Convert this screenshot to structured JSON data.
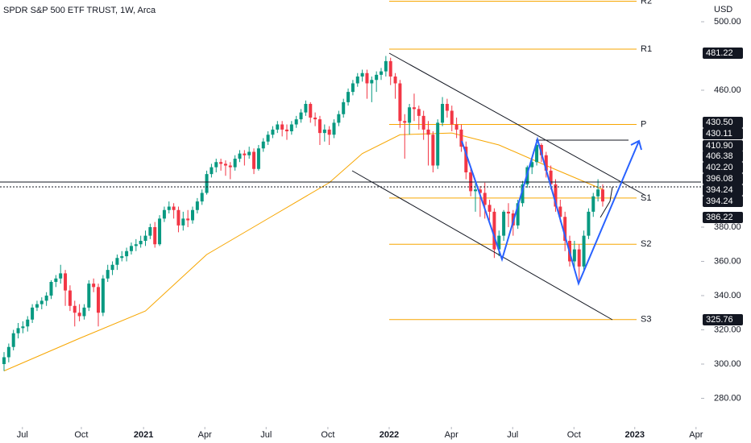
{
  "chart_data": {
    "type": "candlestick",
    "title": "SPDR S&P 500 ETF TRUST, 1W, Arca",
    "currency": "USD",
    "xlim": [
      -0.855,
      147.86
    ],
    "xticks": [
      {
        "value": 3.9,
        "label": "Jul"
      },
      {
        "value": 16.4,
        "label": "Oct"
      },
      {
        "value": 29.6,
        "label": "2021"
      },
      {
        "value": 42.6,
        "label": "Apr"
      },
      {
        "value": 55.6,
        "label": "Jul"
      },
      {
        "value": 68.7,
        "label": "Oct"
      },
      {
        "value": 81.7,
        "label": "2022"
      },
      {
        "value": 94.9,
        "label": "Apr"
      },
      {
        "value": 107.9,
        "label": "Jul"
      },
      {
        "value": 120.9,
        "label": "Oct"
      },
      {
        "value": 133.8,
        "label": "2023"
      },
      {
        "value": 146.8,
        "label": "Apr"
      }
    ],
    "ylim": [
      263.3,
      512.7
    ],
    "yticks": [
      {
        "value": 280,
        "label": "280.00"
      },
      {
        "value": 300,
        "label": "300.00"
      },
      {
        "value": 320,
        "label": "320.00"
      },
      {
        "value": 340,
        "label": "340.00"
      },
      {
        "value": 360,
        "label": "360.00"
      },
      {
        "value": 380,
        "label": "380.00"
      },
      {
        "value": 460,
        "label": "460.00"
      },
      {
        "value": 500,
        "label": "500.00"
      }
    ],
    "up_color": "#089981",
    "down_color": "#f23645",
    "ohlc": [
      [
        300,
        307,
        296,
        304
      ],
      [
        304,
        312,
        301,
        310
      ],
      [
        310,
        320,
        308,
        318
      ],
      [
        318,
        324,
        315,
        321
      ],
      [
        321,
        325,
        318,
        322
      ],
      [
        322,
        328,
        319,
        326
      ],
      [
        326,
        335,
        324,
        333
      ],
      [
        333,
        337,
        331,
        335
      ],
      [
        335,
        339,
        332,
        337
      ],
      [
        337,
        342,
        334,
        340
      ],
      [
        340,
        349,
        338,
        348
      ],
      [
        348,
        352,
        345,
        350
      ],
      [
        350,
        358,
        347,
        353
      ],
      [
        353,
        355,
        334,
        343
      ],
      [
        343,
        346,
        331,
        334
      ],
      [
        334,
        337,
        322,
        330
      ],
      [
        330,
        335,
        325,
        328
      ],
      [
        328,
        335,
        326,
        333
      ],
      [
        333,
        349,
        331,
        347
      ],
      [
        347,
        350,
        342,
        345
      ],
      [
        345,
        347,
        322,
        330
      ],
      [
        330,
        352,
        328,
        350
      ],
      [
        350,
        358,
        348,
        355
      ],
      [
        355,
        360,
        352,
        358
      ],
      [
        358,
        364,
        355,
        362
      ],
      [
        362,
        366,
        360,
        363
      ],
      [
        363,
        368,
        360,
        366
      ],
      [
        366,
        371,
        364,
        369
      ],
      [
        369,
        373,
        366,
        370
      ],
      [
        370,
        375,
        368,
        372
      ],
      [
        372,
        378,
        369,
        375
      ],
      [
        375,
        382,
        373,
        380
      ],
      [
        380,
        383,
        368,
        370
      ],
      [
        370,
        387,
        369,
        385
      ],
      [
        385,
        392,
        383,
        390
      ],
      [
        390,
        395,
        388,
        392
      ],
      [
        392,
        394,
        385,
        390
      ],
      [
        390,
        392,
        377,
        381
      ],
      [
        381,
        389,
        378,
        385
      ],
      [
        385,
        390,
        380,
        384
      ],
      [
        384,
        392,
        382,
        390
      ],
      [
        390,
        397,
        388,
        395
      ],
      [
        395,
        402,
        393,
        400
      ],
      [
        400,
        413,
        399,
        411
      ],
      [
        411,
        417,
        409,
        415
      ],
      [
        415,
        420,
        412,
        418
      ],
      [
        418,
        420,
        413,
        417
      ],
      [
        417,
        419,
        410,
        416
      ],
      [
        416,
        418,
        408,
        415
      ],
      [
        415,
        422,
        413,
        420
      ],
      [
        420,
        425,
        418,
        423
      ],
      [
        423,
        425,
        416,
        422
      ],
      [
        422,
        427,
        420,
        424
      ],
      [
        424,
        426,
        411,
        414
      ],
      [
        414,
        428,
        413,
        426
      ],
      [
        426,
        432,
        424,
        430
      ],
      [
        430,
        436,
        428,
        434
      ],
      [
        434,
        439,
        432,
        437
      ],
      [
        437,
        442,
        435,
        440
      ],
      [
        440,
        442,
        433,
        437
      ],
      [
        437,
        440,
        431,
        436
      ],
      [
        436,
        442,
        434,
        440
      ],
      [
        440,
        445,
        438,
        443
      ],
      [
        443,
        449,
        441,
        447
      ],
      [
        447,
        454,
        445,
        452
      ],
      [
        452,
        453,
        441,
        444
      ],
      [
        444,
        447,
        439,
        443
      ],
      [
        443,
        445,
        428,
        435
      ],
      [
        435,
        440,
        430,
        437
      ],
      [
        437,
        439,
        428,
        434
      ],
      [
        434,
        443,
        432,
        441
      ],
      [
        441,
        448,
        439,
        446
      ],
      [
        446,
        455,
        444,
        453
      ],
      [
        453,
        461,
        451,
        459
      ],
      [
        459,
        466,
        457,
        464
      ],
      [
        464,
        470,
        462,
        468
      ],
      [
        468,
        472,
        465,
        470
      ],
      [
        470,
        472,
        455,
        464
      ],
      [
        464,
        468,
        453,
        466
      ],
      [
        466,
        471,
        459,
        469
      ],
      [
        469,
        473,
        466,
        471
      ],
      [
        471,
        480,
        468,
        477
      ],
      [
        477,
        479,
        463,
        468
      ],
      [
        468,
        470,
        455,
        464
      ],
      [
        464,
        466,
        438,
        442
      ],
      [
        442,
        446,
        420,
        441
      ],
      [
        441,
        452,
        434,
        450
      ],
      [
        450,
        458,
        442,
        449
      ],
      [
        449,
        451,
        437,
        445
      ],
      [
        445,
        448,
        431,
        437
      ],
      [
        437,
        442,
        416,
        434
      ],
      [
        434,
        436,
        412,
        416
      ],
      [
        416,
        443,
        414,
        441
      ],
      [
        441,
        456,
        439,
        452
      ],
      [
        452,
        455,
        444,
        448
      ],
      [
        448,
        451,
        436,
        440
      ],
      [
        440,
        444,
        432,
        437
      ],
      [
        437,
        440,
        424,
        427
      ],
      [
        427,
        430,
        408,
        412
      ],
      [
        412,
        415,
        398,
        401
      ],
      [
        401,
        406,
        389,
        402
      ],
      [
        402,
        404,
        386,
        400
      ],
      [
        400,
        406,
        385,
        393
      ],
      [
        393,
        396,
        384,
        389
      ],
      [
        389,
        391,
        362,
        367
      ],
      [
        367,
        378,
        363,
        375
      ],
      [
        375,
        390,
        372,
        389
      ],
      [
        389,
        394,
        380,
        388
      ],
      [
        388,
        390,
        375,
        381
      ],
      [
        381,
        396,
        379,
        394
      ],
      [
        394,
        407,
        392,
        405
      ],
      [
        405,
        416,
        403,
        415
      ],
      [
        415,
        420,
        411,
        418
      ],
      [
        418,
        431,
        416,
        428
      ],
      [
        428,
        429,
        418,
        422
      ],
      [
        422,
        424,
        409,
        413
      ],
      [
        413,
        416,
        402,
        405
      ],
      [
        405,
        408,
        389,
        392
      ],
      [
        392,
        396,
        383,
        386
      ],
      [
        386,
        389,
        366,
        372
      ],
      [
        372,
        375,
        357,
        360
      ],
      [
        360,
        372,
        356,
        367
      ],
      [
        367,
        370,
        348,
        357
      ],
      [
        357,
        378,
        355,
        375
      ],
      [
        375,
        391,
        373,
        389
      ],
      [
        389,
        400,
        386,
        398
      ],
      [
        398,
        408,
        395,
        402
      ],
      [
        402,
        405,
        392,
        395
      ]
    ],
    "moving_average": {
      "color": "#f7a600",
      "x": [
        0,
        16,
        30,
        43,
        56,
        69,
        76,
        84,
        95,
        105,
        115,
        127
      ],
      "values": [
        296,
        315,
        331,
        364,
        385,
        406,
        423,
        434,
        435,
        428,
        416,
        402
      ]
    },
    "pivots": {
      "color": "#f7a600",
      "labels": [
        "R2",
        "R1",
        "P",
        "S1",
        "S2",
        "S3"
      ],
      "values": [
        512,
        484,
        440,
        397,
        370,
        326
      ]
    },
    "price_tags": [
      "481.22",
      "430.50",
      "430.11",
      "410.90",
      "406.38",
      "402.20",
      "396.08",
      "394.24",
      "394.24",
      "386.22",
      "325.76"
    ]
  }
}
